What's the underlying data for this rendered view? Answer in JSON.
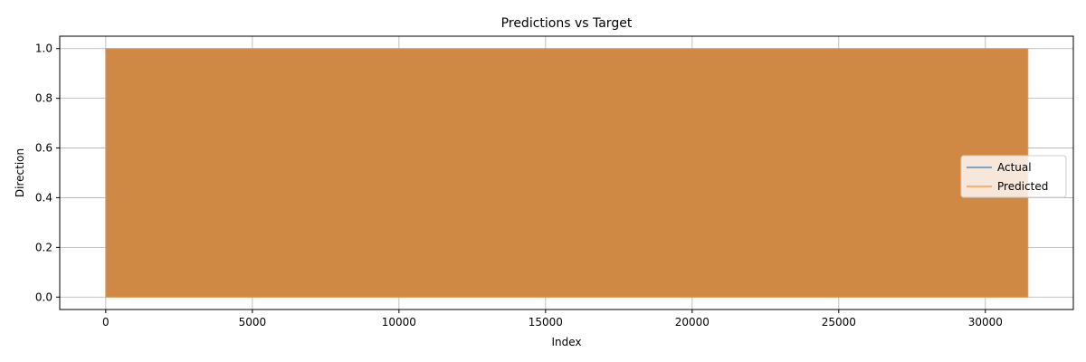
{
  "chart_data": {
    "type": "line",
    "title": "Predictions vs Target",
    "xlabel": "Index",
    "ylabel": "Direction",
    "xlim": [
      -1570,
      33000
    ],
    "ylim": [
      -0.05,
      1.05
    ],
    "xticks": [
      0,
      5000,
      10000,
      15000,
      20000,
      25000,
      30000
    ],
    "yticks": [
      0.0,
      0.2,
      0.4,
      0.6,
      0.8,
      1.0
    ],
    "grid": true,
    "legend_position": "center-right",
    "series": [
      {
        "name": "Actual",
        "color": "#5b8db8",
        "x_range": [
          0,
          31450
        ],
        "values_description_range": [
          0,
          1
        ],
        "alpha": 0.7
      },
      {
        "name": "Predicted",
        "color": "#ff9b45",
        "x_range": [
          0,
          31450
        ],
        "values_description_range": [
          0,
          1
        ],
        "alpha": 0.7
      }
    ],
    "fill_color": "#cf8945"
  }
}
